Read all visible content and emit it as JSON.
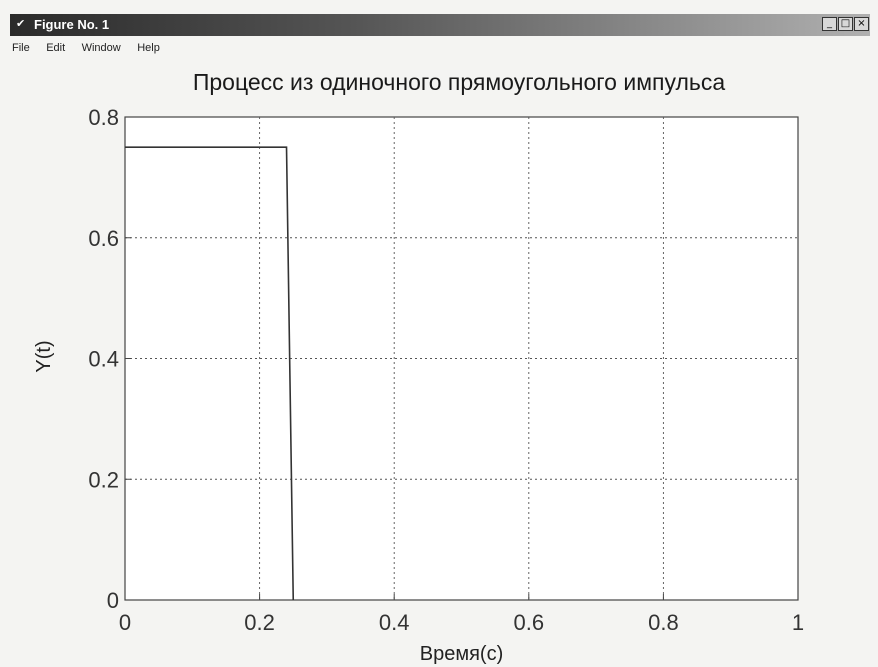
{
  "window": {
    "title": "Figure No. 1",
    "icon": "matlab-figure-icon",
    "controls": {
      "minimize": "_",
      "maximize": "□",
      "close": "×"
    }
  },
  "menu": {
    "items": [
      "File",
      "Edit",
      "Window",
      "Help"
    ]
  },
  "chart_data": {
    "type": "line",
    "title": "Процесс из одиночного прямоугольного импульса",
    "xlabel": "Время(с)",
    "ylabel": "Y(t)",
    "xlim": [
      0,
      1
    ],
    "ylim": [
      0,
      0.8
    ],
    "xticks": [
      0,
      0.2,
      0.4,
      0.6,
      0.8,
      1
    ],
    "xtick_labels": [
      "0",
      "0.2",
      "0.4",
      "0.6",
      "0.8",
      "1"
    ],
    "yticks": [
      0,
      0.2,
      0.4,
      0.6,
      0.8
    ],
    "ytick_labels": [
      "0",
      "0.2",
      "0.4",
      "0.6",
      "0.8"
    ],
    "grid": true,
    "series": [
      {
        "x": [
          0,
          0.24,
          0.25,
          0.25
        ],
        "y": [
          0.75,
          0.75,
          0.0,
          0.0
        ],
        "color": "#333333"
      }
    ]
  }
}
